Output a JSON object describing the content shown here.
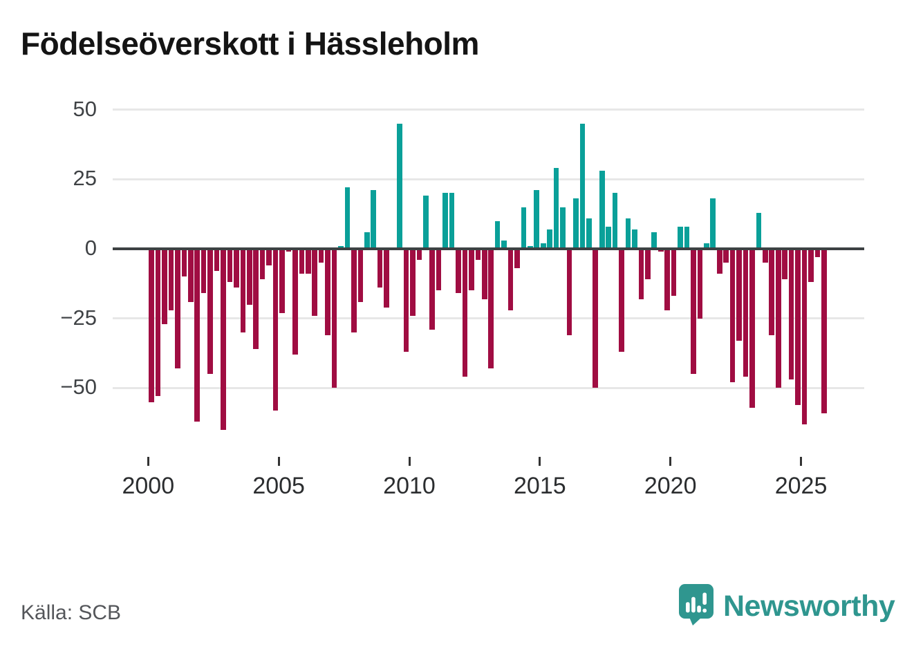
{
  "title": "Födelseöverskott i Hässleholm",
  "source": "Källa: SCB",
  "brand": {
    "name": "Newsworthy",
    "color": "#2f968f"
  },
  "colors": {
    "positive": "#0aa099",
    "negative": "#a00d42",
    "grid": "#e7e7e7",
    "zero_line": "#3d4143"
  },
  "chart_data": {
    "type": "bar",
    "title": "Födelseöverskott i Hässleholm",
    "xlabel": "",
    "ylabel": "",
    "x_unit": "quarter",
    "start": "2000Q1",
    "end": "2025Q4",
    "freq": "quarterly",
    "ylim": [
      -68,
      52
    ],
    "grid": true,
    "y_ticks": [
      {
        "value": 50,
        "label": "50"
      },
      {
        "value": 25,
        "label": "25"
      },
      {
        "value": 0,
        "label": "0"
      },
      {
        "value": -25,
        "label": "−25"
      },
      {
        "value": -50,
        "label": "−50"
      }
    ],
    "x_ticks": [
      {
        "value": 2000,
        "label": "2000"
      },
      {
        "value": 2005,
        "label": "2005"
      },
      {
        "value": 2010,
        "label": "2010"
      },
      {
        "value": 2015,
        "label": "2015"
      },
      {
        "value": 2020,
        "label": "2020"
      },
      {
        "value": 2025,
        "label": "2025"
      }
    ],
    "values": [
      -55,
      -53,
      -27,
      -22,
      -43,
      -10,
      -19,
      -62,
      -16,
      -45,
      -8,
      -65,
      -12,
      -14,
      -30,
      -20,
      -36,
      -11,
      -6,
      -58,
      -23,
      -1,
      -38,
      -9,
      -9,
      -24,
      -5,
      -31,
      -50,
      1,
      22,
      -30,
      -19,
      6,
      21,
      -14,
      -21,
      0,
      45,
      -37,
      -24,
      -4,
      19,
      -29,
      -15,
      20,
      20,
      -16,
      -46,
      -15,
      -4,
      -18,
      -43,
      10,
      3,
      -22,
      -7,
      15,
      1,
      21,
      2,
      7,
      29,
      15,
      -31,
      18,
      45,
      11,
      -50,
      28,
      8,
      20,
      -37,
      11,
      7,
      -18,
      -11,
      6,
      -1,
      -22,
      -17,
      8,
      8,
      -45,
      -25,
      2,
      18,
      -9,
      -5,
      -48,
      -33,
      -46,
      -57,
      13,
      -5,
      -31,
      -50,
      -11,
      -47,
      -56,
      -63,
      -12,
      -3,
      -59
    ]
  }
}
